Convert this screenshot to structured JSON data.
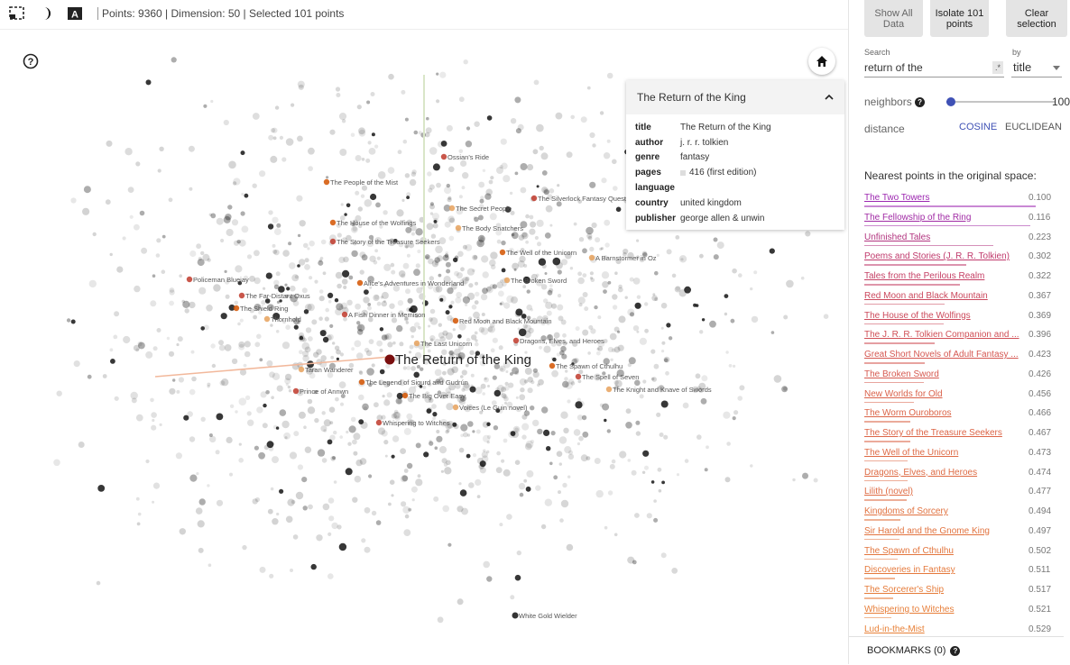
{
  "toolbar": {
    "status": "Points: 9360 | Dimension: 50 | Selected 101 points",
    "icons": [
      "selection-box-icon",
      "night-mode-icon",
      "label-text-icon"
    ]
  },
  "canvas": {
    "focus_label": "The Return of the King",
    "point_labels": [
      "Ossian's Ride",
      "The People of the Mist",
      "The Secret People",
      "The Silverlock Fantasy Quest",
      "The House of the Wolfings",
      "The Body Snatchers",
      "The Story of the Treasure Seekers",
      "The Well of the Unicorn",
      "A Barnstormer in Oz",
      "Policeman Bluejay",
      "Alice's Adventures in Wonderland",
      "The Broken Sword",
      "The Far-Distant Oxus",
      "The Shield Ring",
      "Thornhold",
      "A Fish Dinner in Memison",
      "Red Moon and Black Mountain",
      "The Last Unicorn",
      "Dragons, Elves, and Heroes",
      "The Spawn of Cthulhu",
      "Taran Wanderer",
      "The Spell of Seven",
      "The Legend of Sigurd and Gudrún",
      "The Knight and Knave of Swords",
      "Prince of Annwn",
      "The Big Over Easy",
      "Voices (Le Guin novel)",
      "Whispering to Witches",
      "White Gold Wielder"
    ]
  },
  "info_card": {
    "title": "The Return of the King",
    "fields": [
      {
        "key": "title",
        "value": "The Return of the King"
      },
      {
        "key": "author",
        "value": "j. r. r. tolkien"
      },
      {
        "key": "genre",
        "value": "fantasy"
      },
      {
        "key": "pages",
        "value": "416 (first edition)"
      },
      {
        "key": "language",
        "value": ""
      },
      {
        "key": "country",
        "value": "united kingdom"
      },
      {
        "key": "publisher",
        "value": "george allen & unwin"
      }
    ]
  },
  "panel": {
    "buttons": {
      "show_all": "Show All Data",
      "isolate": "Isolate 101 points",
      "clear": "Clear selection"
    },
    "search": {
      "label": "Search",
      "value": "return of the",
      "regex_symbol": ".*",
      "by_label": "by",
      "by_value": "title"
    },
    "neighbors": {
      "label": "neighbors",
      "value": "100",
      "fraction": 0.04
    },
    "distance": {
      "label": "distance",
      "options": [
        "COSINE",
        "EUCLIDEAN"
      ],
      "selected": "COSINE"
    },
    "nearest_title": "Nearest points in the original space:",
    "nearest": [
      {
        "label": "The Two Towers",
        "value": "0.100",
        "color": "#9c27b0"
      },
      {
        "label": "The Fellowship of the Ring",
        "value": "0.116",
        "color": "#a02aa4"
      },
      {
        "label": "Unfinished Tales",
        "value": "0.223",
        "color": "#b2347f"
      },
      {
        "label": "Poems and Stories (J. R. R. Tolkien)",
        "value": "0.302",
        "color": "#c03a6c"
      },
      {
        "label": "Tales from the Perilous Realm",
        "value": "0.322",
        "color": "#c53f64"
      },
      {
        "label": "Red Moon and Black Mountain",
        "value": "0.367",
        "color": "#cb485d"
      },
      {
        "label": "The House of the Wolfings",
        "value": "0.369",
        "color": "#cc4a5b"
      },
      {
        "label": "The J. R. R. Tolkien Companion and ...",
        "value": "0.396",
        "color": "#d04f56"
      },
      {
        "label": "Great Short Novels of Adult Fantasy ...",
        "value": "0.423",
        "color": "#d55751"
      },
      {
        "label": "The Broken Sword",
        "value": "0.426",
        "color": "#d6594f"
      },
      {
        "label": "New Worlds for Old",
        "value": "0.456",
        "color": "#da614a"
      },
      {
        "label": "The Worm Ouroboros",
        "value": "0.466",
        "color": "#db6447"
      },
      {
        "label": "The Story of the Treasure Seekers",
        "value": "0.467",
        "color": "#dc6547"
      },
      {
        "label": "The Well of the Unicorn",
        "value": "0.473",
        "color": "#de6a45"
      },
      {
        "label": "Dragons, Elves, and Heroes",
        "value": "0.474",
        "color": "#de6b44"
      },
      {
        "label": "Lilith (novel)",
        "value": "0.477",
        "color": "#df6c44"
      },
      {
        "label": "Kingdoms of Sorcery",
        "value": "0.494",
        "color": "#e17240"
      },
      {
        "label": "Sir Harold and the Gnome King",
        "value": "0.497",
        "color": "#e2733f"
      },
      {
        "label": "The Spawn of Cthulhu",
        "value": "0.502",
        "color": "#e3763e"
      },
      {
        "label": "Discoveries in Fantasy",
        "value": "0.511",
        "color": "#e5793c"
      },
      {
        "label": "The Sorcerer's Ship",
        "value": "0.517",
        "color": "#e67c3a"
      },
      {
        "label": "Whispering to Witches",
        "value": "0.521",
        "color": "#e77e39"
      },
      {
        "label": "Lud-in-the-Mist",
        "value": "0.529",
        "color": "#e88138"
      }
    ],
    "bookmarks": "BOOKMARKS (0)"
  },
  "colors": {
    "accent": "#3f51b5",
    "highlight_start": "#9c27b0",
    "highlight_end": "#ef6c00"
  }
}
